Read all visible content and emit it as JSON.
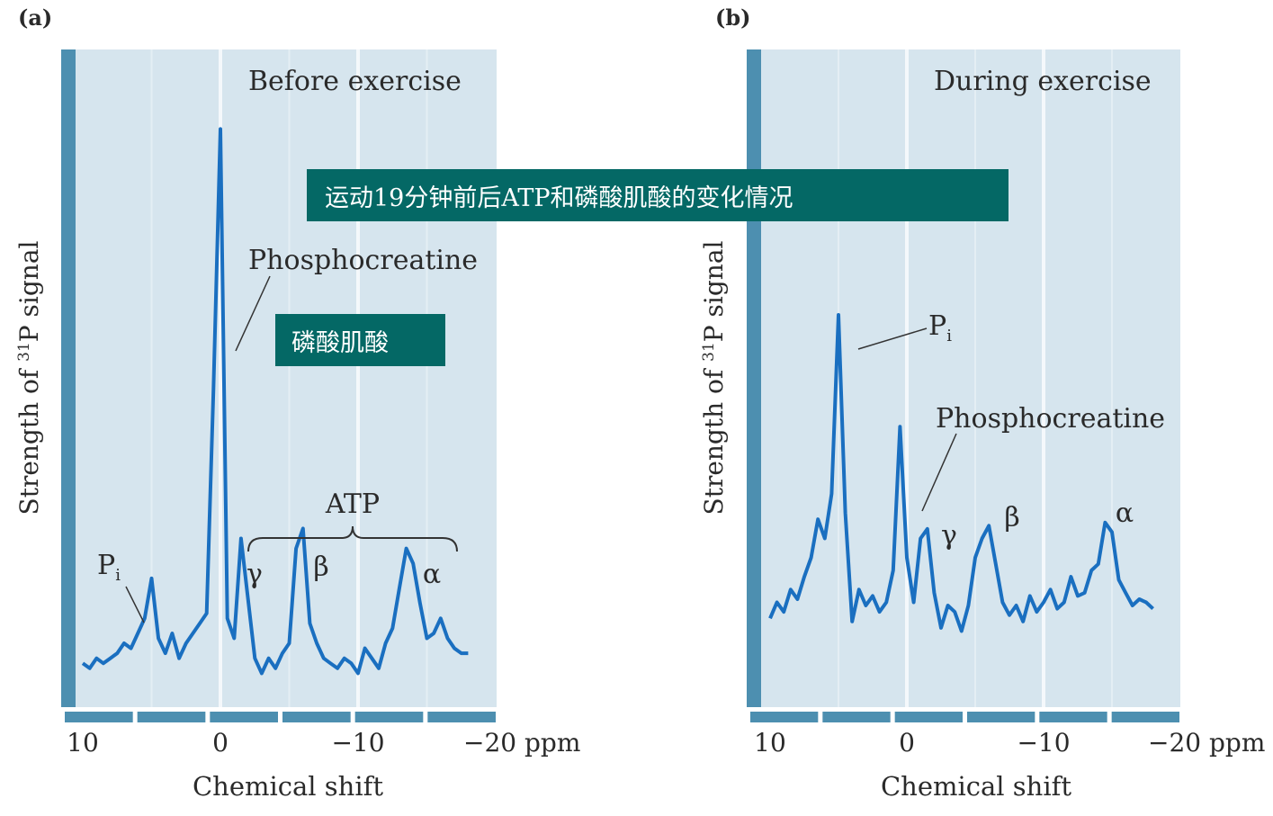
{
  "colors": {
    "panel_bg": "#d6e5ee",
    "panel_stripe": "#e4eef4",
    "frame": "#4d8fb0",
    "trace": "#1a6fc0",
    "banner_bg": "#046865",
    "banner_text": "#ffffff"
  },
  "banners": {
    "main": "运动19分钟前后ATP和磷酸肌酸的变化情况",
    "phosphocreatine_cn": "磷酸肌酸"
  },
  "chart_data": [
    {
      "type": "line",
      "panel_label": "(a)",
      "title": "Before exercise",
      "xlabel": "Chemical shift",
      "ylabel": "Strength of 31P signal",
      "xlim": [
        10,
        -20
      ],
      "x_ticks": [
        "10",
        "0",
        "−10",
        "−20 ppm"
      ],
      "grid": "vertical bands",
      "annotations": {
        "pi": "P",
        "pi_sub": "i",
        "pcr": "Phosphocreatine",
        "atp": "ATP",
        "gamma": "γ",
        "beta": "β",
        "alpha": "α"
      },
      "series": [
        {
          "x": [
            10,
            9.5,
            9,
            8.5,
            8,
            7.5,
            7,
            6.5,
            6,
            5.5,
            5,
            4.5,
            4,
            3.5,
            3,
            2.5,
            2,
            1.5,
            1,
            0.5,
            0,
            -0.5,
            -1,
            -1.5,
            -2,
            -2.5,
            -3,
            -3.5,
            -4,
            -4.5,
            -5,
            -5.5,
            -6,
            -6.5,
            -7,
            -7.5,
            -8,
            -8.5,
            -9,
            -9.5,
            -10,
            -10.5,
            -11,
            -11.5,
            -12,
            -12.5,
            -13,
            -13.5,
            -14,
            -14.5,
            -15,
            -15.5,
            -16,
            -16.5,
            -17,
            -17.5,
            -18
          ],
          "y": [
            5,
            4,
            6,
            5,
            6,
            7,
            9,
            8,
            11,
            14,
            22,
            10,
            7,
            11,
            6,
            9,
            11,
            13,
            15,
            60,
            112,
            14,
            10,
            30,
            18,
            6,
            3,
            6,
            4,
            7,
            9,
            28,
            32,
            13,
            9,
            6,
            5,
            4,
            6,
            5,
            3,
            8,
            6,
            4,
            9,
            12,
            20,
            28,
            25,
            17,
            10,
            11,
            14,
            10,
            8,
            7,
            7
          ]
        }
      ]
    },
    {
      "type": "line",
      "panel_label": "(b)",
      "title": "During exercise",
      "xlabel": "Chemical shift",
      "ylabel": "Strength of 31P signal",
      "xlim": [
        10,
        -20
      ],
      "x_ticks": [
        "10",
        "0",
        "−10",
        "−20 ppm"
      ],
      "grid": "vertical bands",
      "annotations": {
        "pi": "P",
        "pi_sub": "i",
        "pcr": "Phosphocreatine",
        "gamma": "γ",
        "beta": "β",
        "alpha": "α"
      },
      "series": [
        {
          "x": [
            10,
            9.5,
            9,
            8.5,
            8,
            7.5,
            7,
            6.5,
            6,
            5.5,
            5,
            4.5,
            4,
            3.5,
            3,
            2.5,
            2,
            1.5,
            1,
            0.5,
            0,
            -0.5,
            -1,
            -1.5,
            -2,
            -2.5,
            -3,
            -3.5,
            -4,
            -4.5,
            -5,
            -5.5,
            -6,
            -6.5,
            -7,
            -7.5,
            -8,
            -8.5,
            -9,
            -9.5,
            -10,
            -10.5,
            -11,
            -11.5,
            -12,
            -12.5,
            -13,
            -13.5,
            -14,
            -14.5,
            -15,
            -15.5,
            -16,
            -16.5,
            -17,
            -17.5,
            -18
          ],
          "y": [
            5,
            10,
            7,
            14,
            11,
            18,
            24,
            36,
            30,
            44,
            100,
            38,
            4,
            14,
            9,
            12,
            7,
            10,
            20,
            65,
            24,
            10,
            30,
            33,
            13,
            2,
            9,
            7,
            1,
            9,
            24,
            30,
            34,
            22,
            10,
            6,
            9,
            4,
            12,
            7,
            10,
            14,
            8,
            10,
            18,
            12,
            13,
            20,
            22,
            35,
            32,
            17,
            13,
            9,
            11,
            10,
            8
          ]
        }
      ]
    }
  ]
}
